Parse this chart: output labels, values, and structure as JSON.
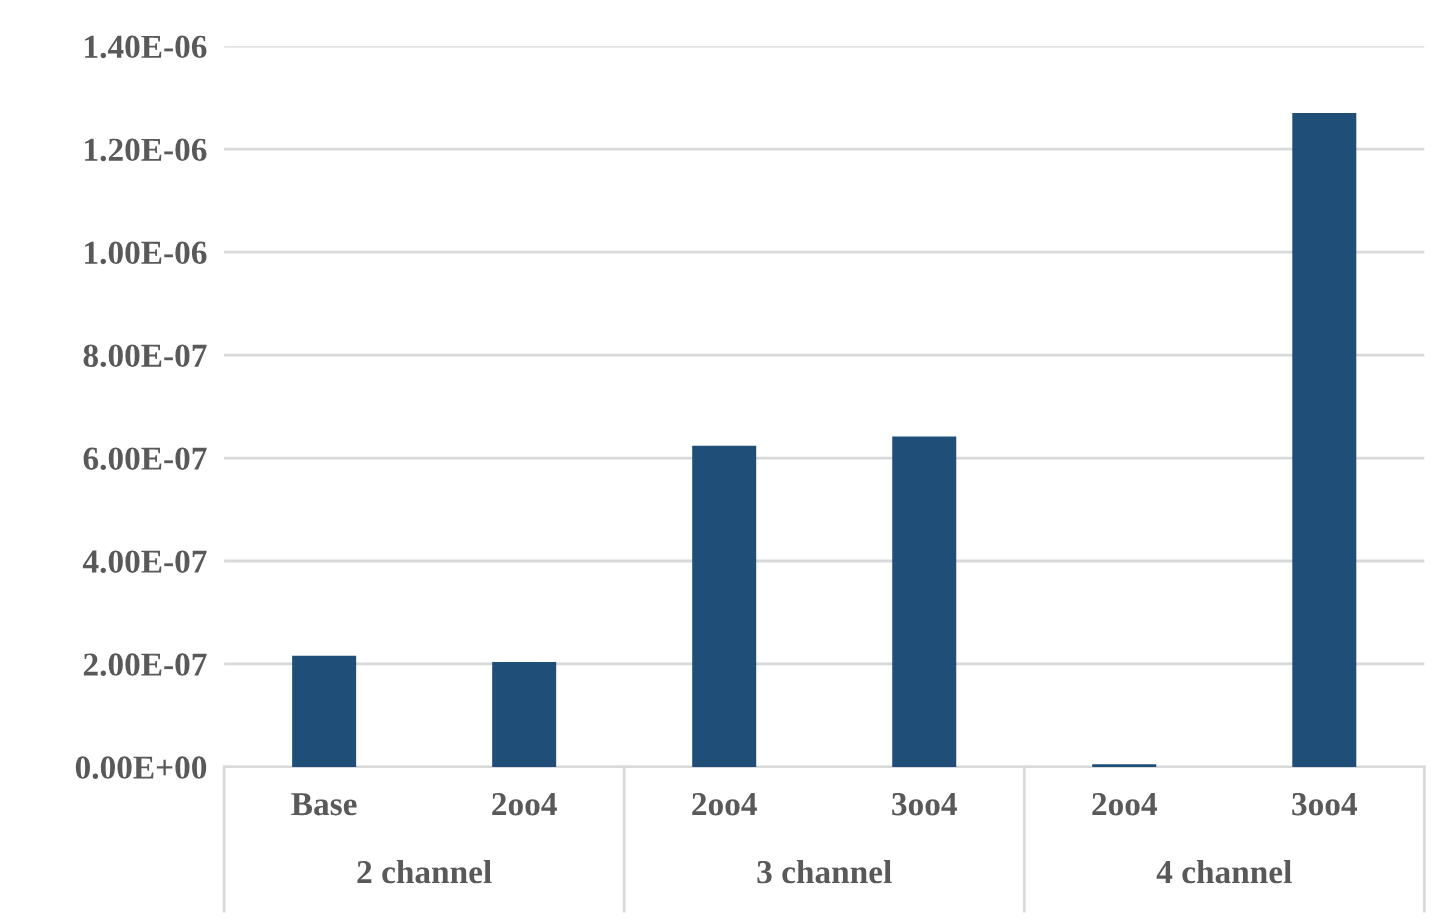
{
  "chart_data": {
    "type": "bar",
    "categories": [
      "Base",
      "2oo4",
      "2oo4",
      "3oo4",
      "2oo4",
      "3oo4"
    ],
    "values": [
      2.16e-07,
      2.04e-07,
      6.24e-07,
      6.42e-07,
      5e-09,
      1.27e-06
    ],
    "color": "#1f4e79",
    "ylim": [
      0,
      1.4e-06
    ],
    "yticks": [
      {
        "value": 0,
        "label": "0.00E+00"
      },
      {
        "value": 2e-07,
        "label": "2.00E-07"
      },
      {
        "value": 4e-07,
        "label": "4.00E-07"
      },
      {
        "value": 6e-07,
        "label": "6.00E-07"
      },
      {
        "value": 8e-07,
        "label": "8.00E-07"
      },
      {
        "value": 1e-06,
        "label": "1.00E-06"
      },
      {
        "value": 1.2e-06,
        "label": "1.20E-06"
      },
      {
        "value": 1.4e-06,
        "label": "1.40E-06"
      }
    ],
    "grid": "y",
    "annotations": [
      "2 channel",
      "3 channel",
      "4 channel"
    ]
  }
}
